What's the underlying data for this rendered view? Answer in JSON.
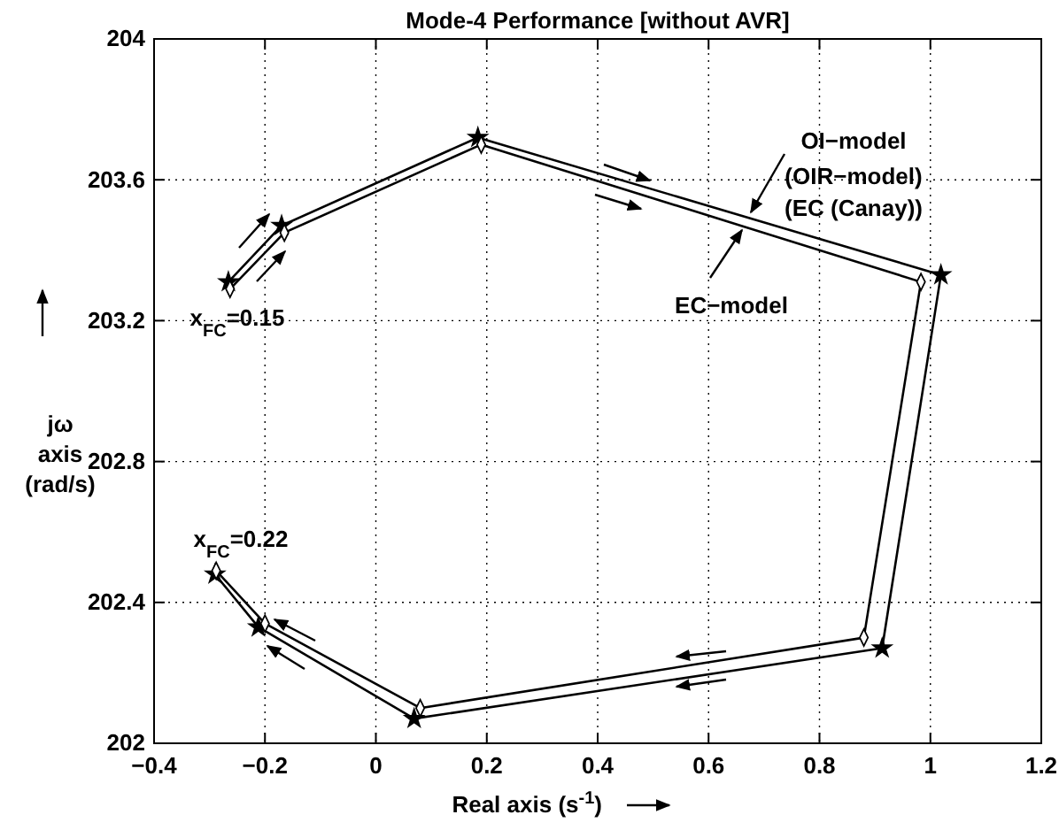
{
  "chart_data": {
    "type": "line",
    "title": "Mode-4 Performance [without AVR]",
    "xlabel": "Real axis (s$^{-1}$)",
    "ylabel": "jω axis (rad/s)",
    "xlim": [
      -0.4,
      1.2
    ],
    "ylim": [
      202,
      204
    ],
    "xticks": [
      {
        "value": -0.4,
        "label": "−0.4"
      },
      {
        "value": -0.2,
        "label": "−0.2"
      },
      0,
      0.2,
      0.4,
      0.6,
      0.8,
      1,
      1.2
    ],
    "yticks": [
      202,
      202.4,
      202.8,
      203.2,
      203.6,
      204
    ],
    "grid": true,
    "line_style": "solid",
    "series": [
      {
        "color": "#000000",
        "marker": "star",
        "x": [
          -0.266,
          -0.17,
          0.184,
          1.019,
          0.913,
          0.069,
          -0.212,
          -0.29
        ],
        "values": [
          203.31,
          203.47,
          203.72,
          203.33,
          202.27,
          202.07,
          202.33,
          202.48
        ]
      },
      {
        "color": "#000000",
        "marker": "diamond",
        "x": [
          -0.263,
          -0.165,
          0.19,
          0.983,
          0.88,
          0.08,
          -0.2,
          -0.288
        ],
        "values": [
          203.29,
          203.45,
          203.7,
          203.31,
          202.3,
          202.1,
          202.34,
          202.49
        ]
      }
    ],
    "annotations": [
      "OI−model",
      "(OIR−model)",
      "(EC (Canay))",
      "EC−model",
      "x$_{FC}$=0.15",
      "x$_{FC}$=0.22"
    ]
  }
}
